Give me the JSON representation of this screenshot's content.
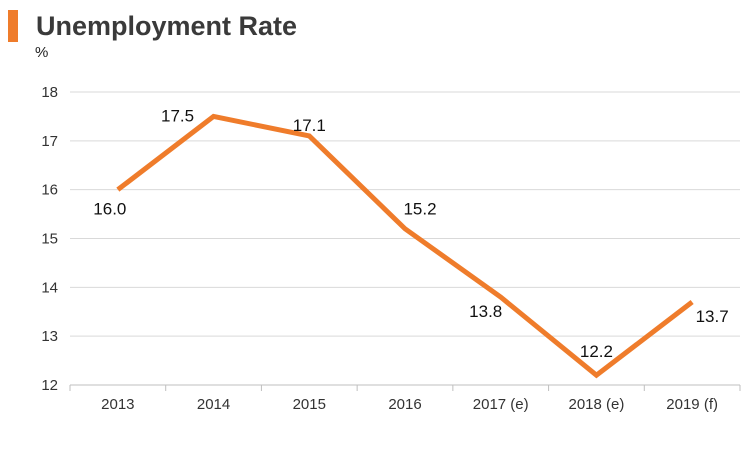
{
  "title": "Unemployment Rate",
  "unit": "%",
  "colors": {
    "accent": "#ef7c2b",
    "grid": "#d9d9d9",
    "axis": "#bfbfbf"
  },
  "chart_data": {
    "type": "line",
    "categories": [
      "2013",
      "2014",
      "2015",
      "2016",
      "2017 (e)",
      "2018 (e)",
      "2019 (f)"
    ],
    "series": [
      {
        "values": [
          16.0,
          17.5,
          17.1,
          15.2,
          13.8,
          12.2,
          13.7
        ]
      }
    ],
    "data_labels": [
      "16.0",
      "17.5",
      "17.1",
      "15.2",
      "13.8",
      "12.2",
      "13.7"
    ],
    "y_ticks": [
      "12",
      "13",
      "14",
      "15",
      "16",
      "17",
      "18"
    ],
    "ylim": [
      12,
      18
    ],
    "grid": true,
    "ylabel": "%",
    "xlabel": ""
  }
}
